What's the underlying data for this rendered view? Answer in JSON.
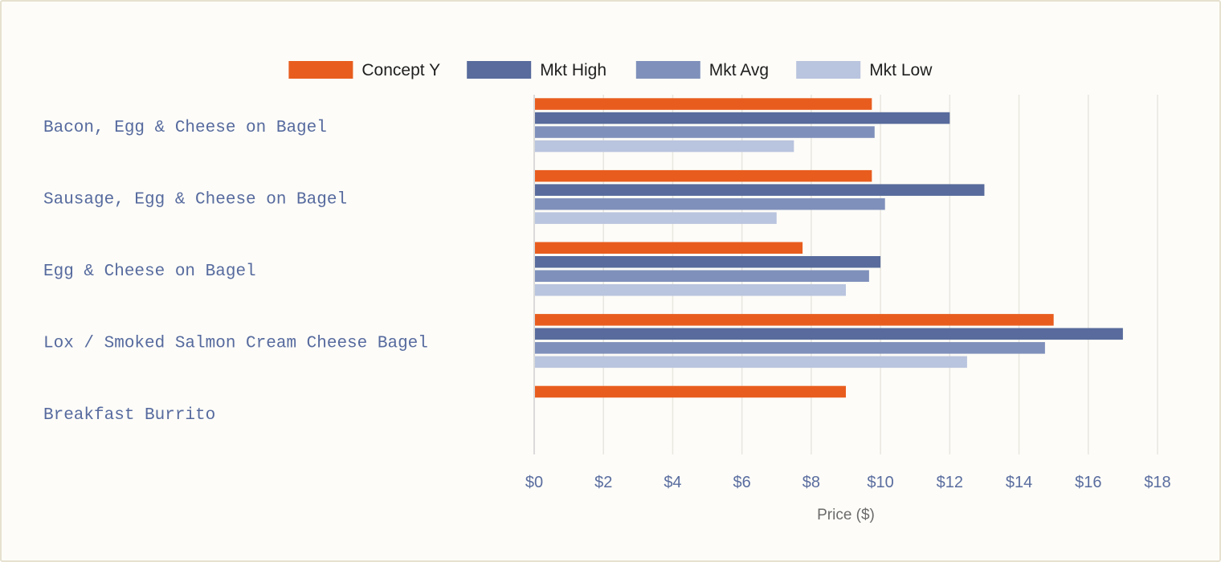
{
  "chart_data": {
    "type": "bar",
    "orientation": "horizontal",
    "categories": [
      "Bacon, Egg & Cheese on Bagel",
      "Sausage, Egg & Cheese on Bagel",
      "Egg & Cheese on Bagel",
      "Lox / Smoked Salmon Cream Cheese Bagel",
      "Breakfast Burrito"
    ],
    "series": [
      {
        "name": "Concept Y",
        "color": "#e85d1e",
        "values": [
          9.75,
          9.75,
          7.75,
          15.0,
          9.0
        ]
      },
      {
        "name": "Mkt High",
        "color": "#586b9c",
        "values": [
          12.0,
          13.0,
          10.0,
          17.0,
          null
        ]
      },
      {
        "name": "Mkt Avg",
        "color": "#7f90bb",
        "values": [
          9.83,
          10.13,
          9.67,
          14.75,
          null
        ]
      },
      {
        "name": "Mkt Low",
        "color": "#b9c4de",
        "values": [
          7.5,
          7.0,
          9.0,
          12.5,
          null
        ]
      }
    ],
    "xlabel": "Price ($)",
    "xlim": [
      0,
      18
    ],
    "xticks": [
      0,
      2,
      4,
      6,
      8,
      10,
      12,
      14,
      16,
      18
    ],
    "xtick_labels": [
      "$0",
      "$2",
      "$4",
      "$6",
      "$8",
      "$10",
      "$12",
      "$14",
      "$16",
      "$18"
    ],
    "grid": "vertical",
    "legend_position": "top-center"
  },
  "colors": {
    "background": "#fdfcf8",
    "gridline": "#e8e6df",
    "axis": "#cfcfcf"
  }
}
